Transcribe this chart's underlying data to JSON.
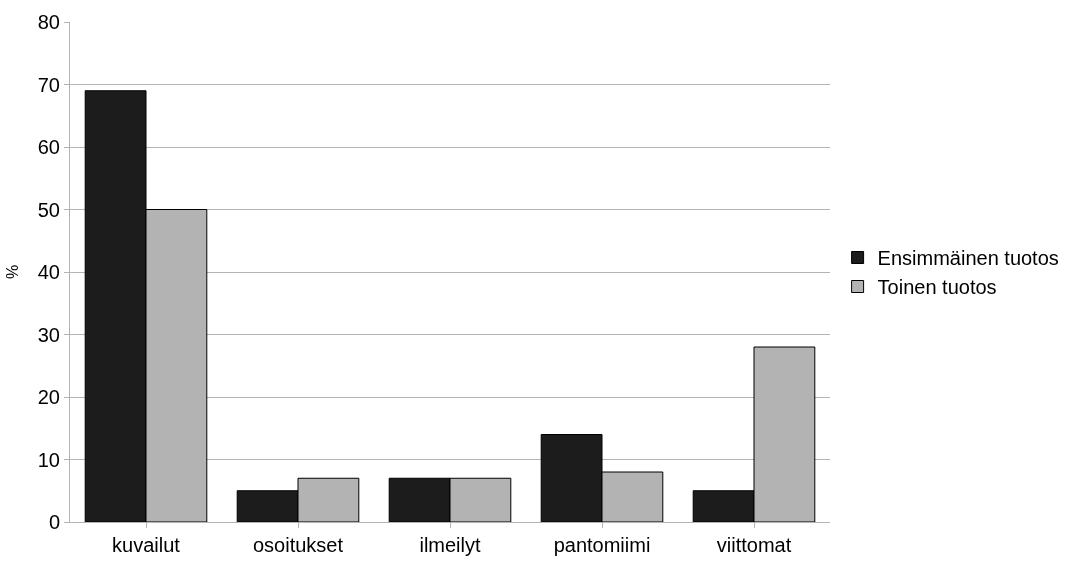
{
  "chart_data": {
    "type": "bar",
    "ylabel": "%",
    "categories": [
      "kuvailut",
      "osoitukset",
      "ilmeilyt",
      "pantomiimi",
      "viittomat"
    ],
    "series": [
      {
        "name": "Ensimmäinen tuotos",
        "color": "#1c1c1c",
        "values": [
          69,
          5,
          7,
          14,
          5
        ]
      },
      {
        "name": "Toinen tuotos",
        "color": "#b3b3b3",
        "values": [
          50,
          7,
          7,
          8,
          28
        ]
      }
    ],
    "ylim": [
      0,
      80
    ],
    "yticks": [
      0,
      10,
      20,
      30,
      40,
      50,
      60,
      70,
      80
    ],
    "grid": "y",
    "legend": "right"
  }
}
